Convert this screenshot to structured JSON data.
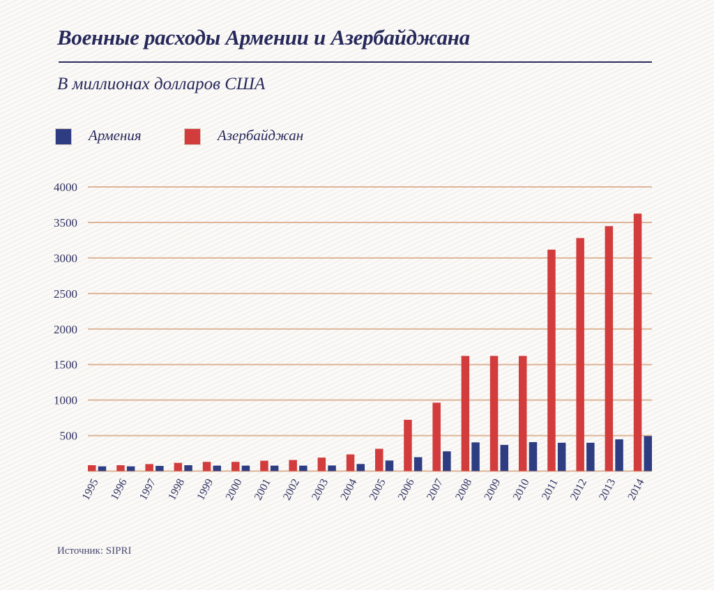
{
  "title": "Военные расходы Армении и Азербайджана",
  "subtitle": "В миллионах долларов США",
  "source": "Источник: SIPRI",
  "colors": {
    "armenia": "#2e3d82",
    "azerbaijan": "#d23c3c",
    "grid": "#ddb498",
    "text": "#26285a"
  },
  "legend": [
    {
      "label": "Армения",
      "color": "#2e3d82"
    },
    {
      "label": "Азербайджан",
      "color": "#d23c3c"
    }
  ],
  "chart_data": {
    "type": "bar",
    "title": "Военные расходы Армении и Азербайджана",
    "subtitle": "В миллионах долларов США",
    "xlabel": "",
    "ylabel": "",
    "ylim": [
      0,
      4000
    ],
    "yticks": [
      500,
      1000,
      1500,
      2000,
      2500,
      3000,
      3500,
      4000
    ],
    "grid": true,
    "legend_position": "top-left",
    "categories": [
      "1995",
      "1996",
      "1997",
      "1998",
      "1999",
      "2000",
      "2001",
      "2002",
      "2003",
      "2004",
      "2005",
      "2006",
      "2007",
      "2008",
      "2009",
      "2010",
      "2011",
      "2012",
      "2013",
      "2014"
    ],
    "series": [
      {
        "name": "Азербайджан",
        "color": "#d23c3c",
        "values": [
          83,
          83,
          99,
          116,
          130,
          130,
          146,
          156,
          190,
          235,
          314,
          722,
          963,
          1621,
          1621,
          1621,
          3117,
          3280,
          3448,
          3624
        ]
      },
      {
        "name": "Армения",
        "color": "#2e3d82",
        "values": [
          67,
          67,
          73,
          83,
          77,
          77,
          77,
          77,
          79,
          100,
          149,
          196,
          278,
          404,
          369,
          408,
          399,
          399,
          447,
          493
        ]
      }
    ],
    "source": "Источник: SIPRI"
  }
}
